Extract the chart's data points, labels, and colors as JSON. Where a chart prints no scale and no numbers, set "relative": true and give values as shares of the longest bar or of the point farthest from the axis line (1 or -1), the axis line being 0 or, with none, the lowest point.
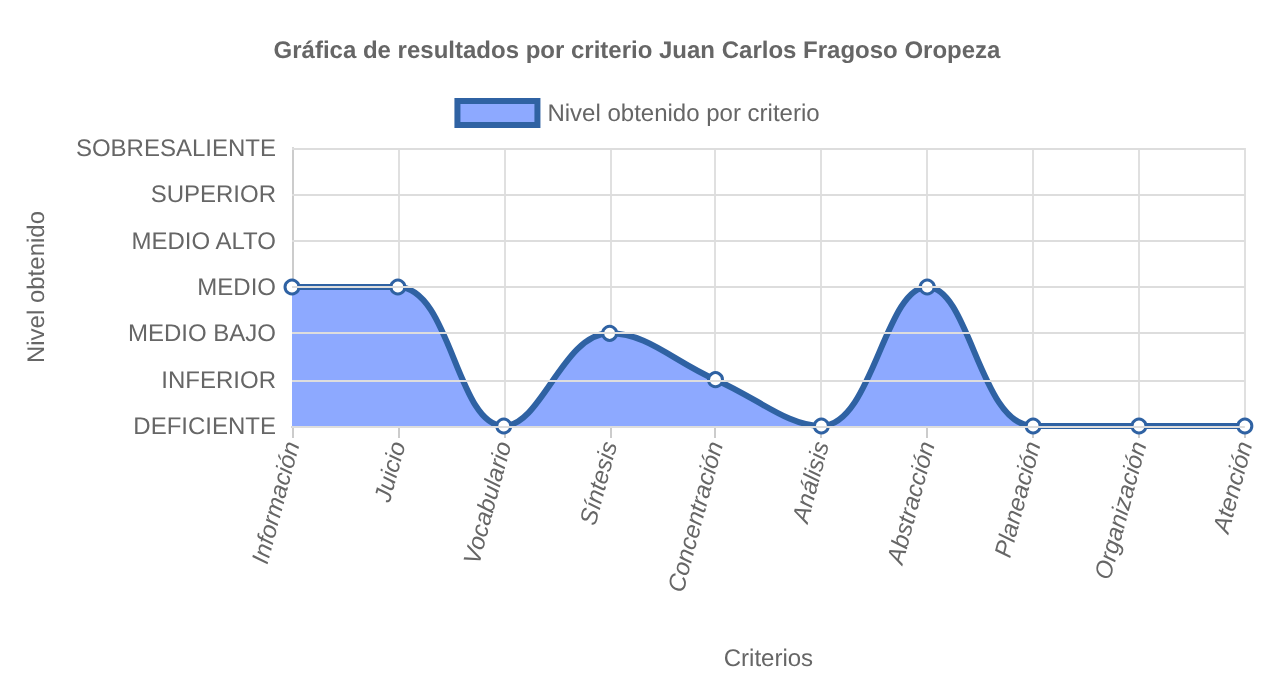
{
  "chart_data": {
    "type": "area",
    "title": "Gráfica de resultados por criterio Juan Carlos Fragoso Oropeza",
    "xlabel": "Criterios",
    "annotations": [
      "Nivel obtenido"
    ],
    "relative": true,
    "categories": [
      "Información",
      "Juicio",
      "Vocabulario",
      "Síntesis",
      "Concentración",
      "Análisis",
      "Abstracción",
      "Planeación",
      "Organización",
      "Atención"
    ],
    "series": [
      {
        "name": "Nivel obtenido por criterio",
        "color": "#2f62a3",
        "values": [
          1,
          1,
          0,
          0.6667,
          0.3333,
          0,
          1,
          0,
          0,
          0
        ]
      }
    ],
    "ref_lines": [
      {
        "axis": "y",
        "value": 0,
        "label": "DEFICIENTE",
        "color": "#dddddd",
        "line_style": "solid"
      },
      {
        "axis": "y",
        "value": 0.3333,
        "label": "INFERIOR",
        "color": "#dddddd",
        "line_style": "solid"
      },
      {
        "axis": "y",
        "value": 0.6667,
        "label": "MEDIO BAJO",
        "color": "#dddddd",
        "line_style": "solid"
      },
      {
        "axis": "y",
        "value": 1,
        "label": "MEDIO",
        "color": "#dddddd",
        "line_style": "solid"
      },
      {
        "axis": "y",
        "value": 1.3333,
        "label": "MEDIO ALTO",
        "color": "#dddddd",
        "line_style": "solid"
      },
      {
        "axis": "y",
        "value": 1.6667,
        "label": "SUPERIOR",
        "color": "#dddddd",
        "line_style": "solid"
      },
      {
        "axis": "y",
        "value": 2,
        "label": "SOBRESALIENTE",
        "color": "#dddddd",
        "line_style": "solid"
      }
    ],
    "grid": "x",
    "legend": "top",
    "marker": "circle",
    "line_style": "solid"
  }
}
